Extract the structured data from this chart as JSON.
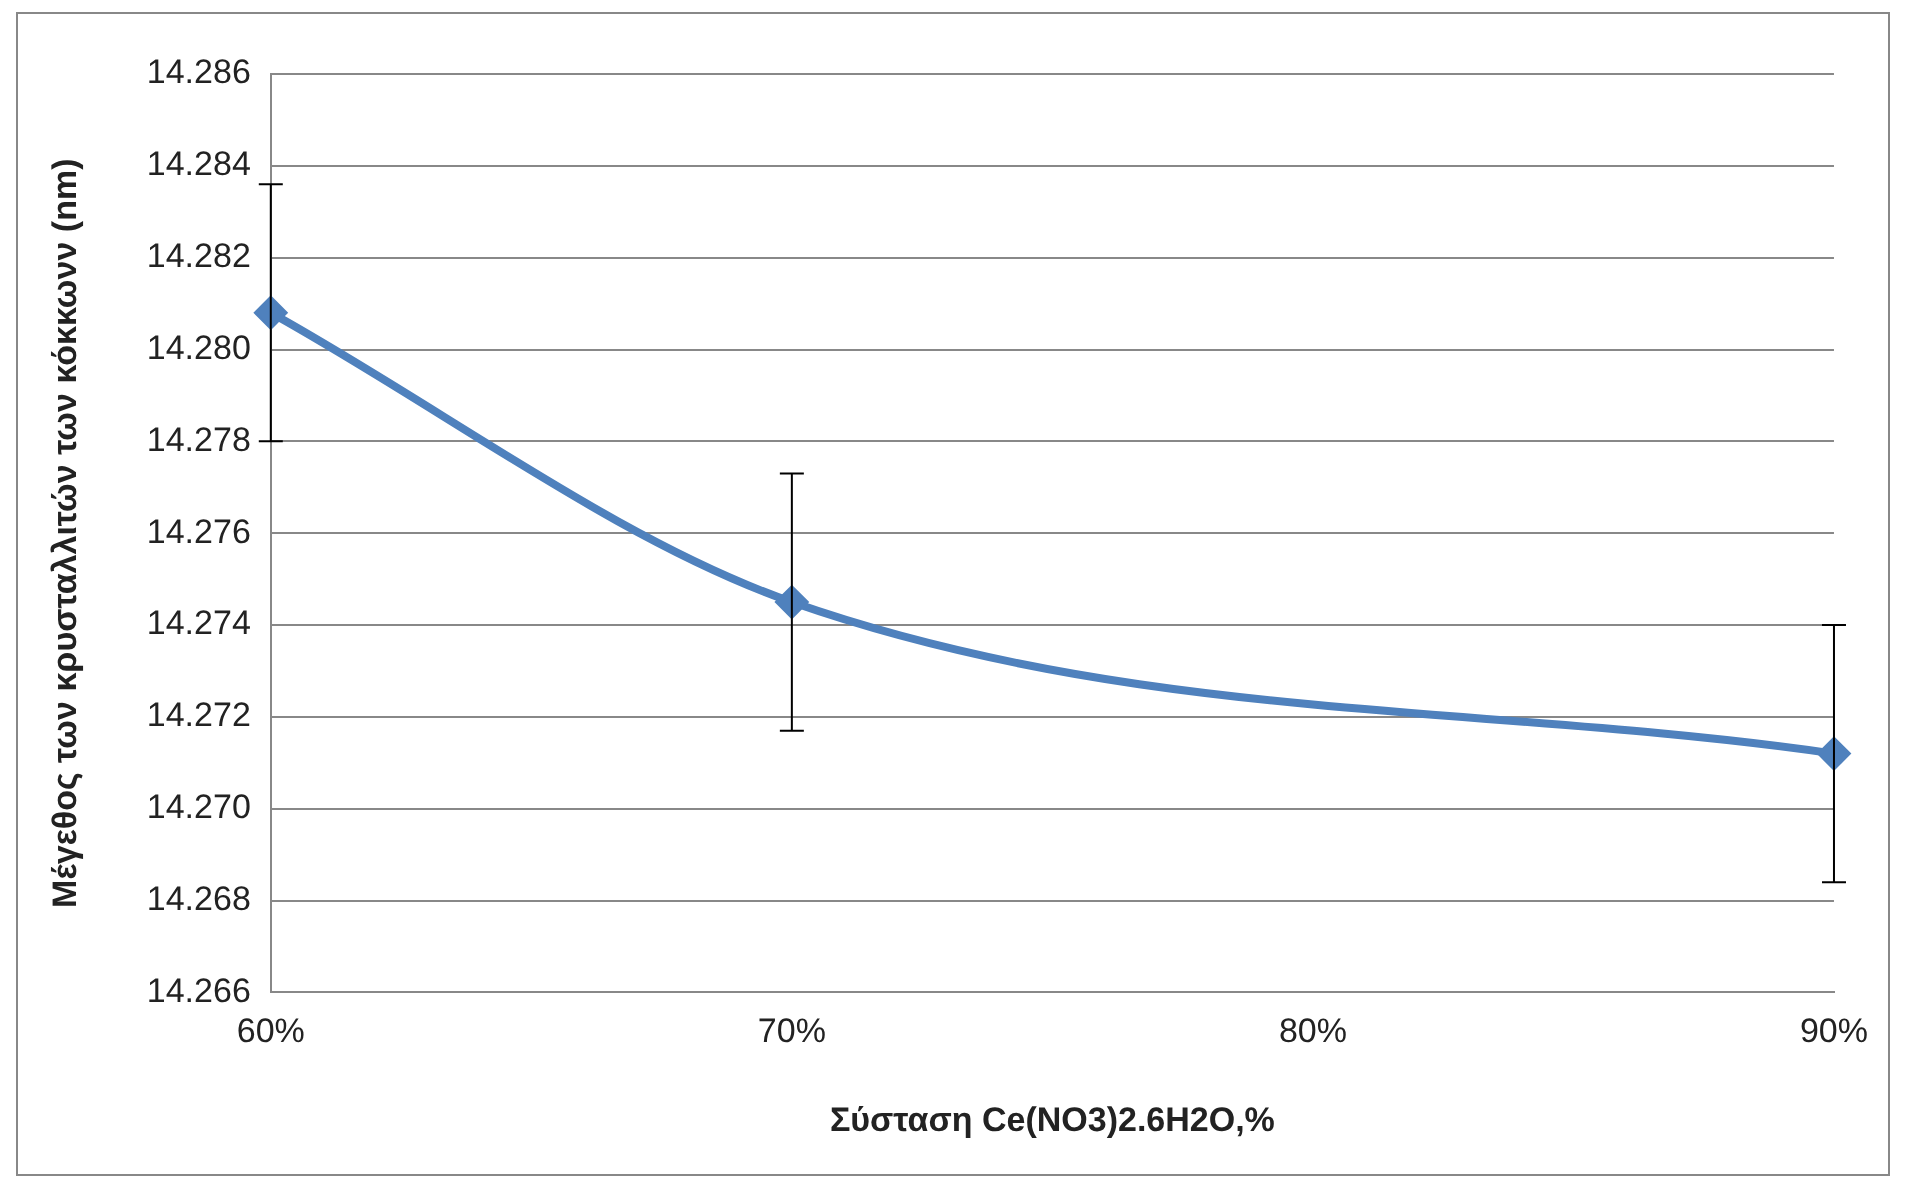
{
  "chart_data": {
    "type": "line",
    "xlabel": "Σύσταση Ce(NO3)2.6H2O,%",
    "ylabel": "Μέγεθος των κρυσταλλιτών των κόκκωνν (nm)",
    "x": [
      60,
      70,
      90
    ],
    "series": [
      {
        "color": "#4f81bd",
        "values": [
          14.2808,
          14.2745,
          14.2712
        ],
        "errors": [
          0.0028,
          0.0028,
          0.0028
        ]
      }
    ],
    "xlim": [
      60,
      90
    ],
    "xticks": [
      {
        "value": 60,
        "label": "60%"
      },
      {
        "value": 70,
        "label": "70%"
      },
      {
        "value": 80,
        "label": "80%"
      },
      {
        "value": 90,
        "label": "90%"
      }
    ],
    "ylim": [
      14.266,
      14.286
    ],
    "yticks": [
      {
        "value": 14.266,
        "label": "14.266"
      },
      {
        "value": 14.268,
        "label": "14.268"
      },
      {
        "value": 14.27,
        "label": "14.270"
      },
      {
        "value": 14.272,
        "label": "14.272"
      },
      {
        "value": 14.274,
        "label": "14.274"
      },
      {
        "value": 14.276,
        "label": "14.276"
      },
      {
        "value": 14.278,
        "label": "14.278"
      },
      {
        "value": 14.28,
        "label": "14.280"
      },
      {
        "value": 14.282,
        "label": "14.282"
      },
      {
        "value": 14.284,
        "label": "14.284"
      },
      {
        "value": 14.286,
        "label": "14.286"
      }
    ],
    "grid": "y",
    "legend": false,
    "marker": "diamond",
    "line_style": "solid"
  }
}
